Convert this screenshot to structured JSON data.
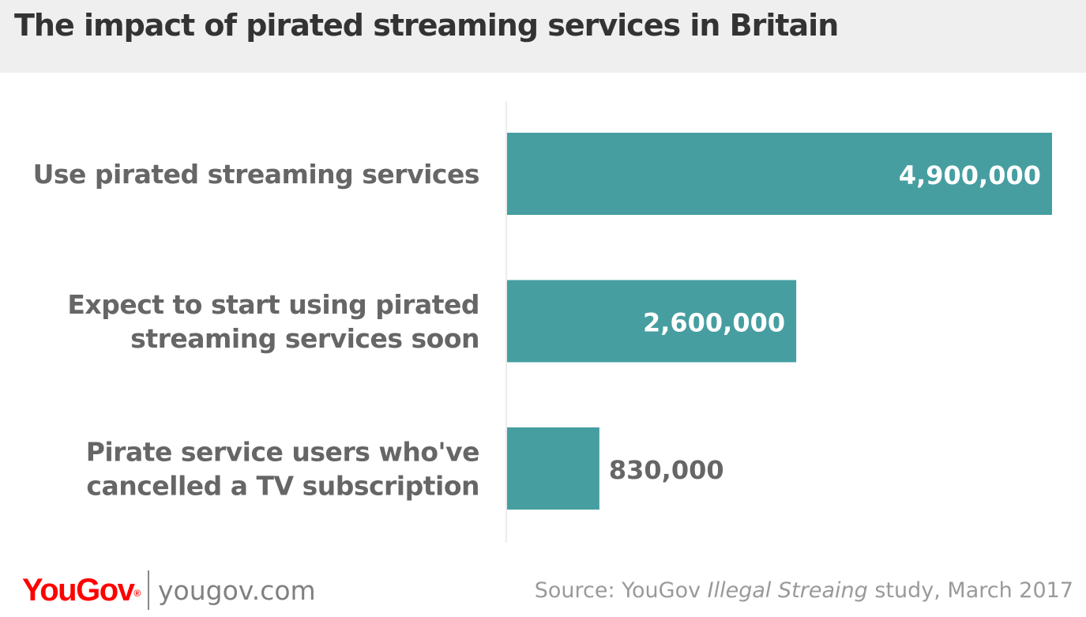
{
  "header": {
    "title": "The impact of pirated streaming services in Britain"
  },
  "colors": {
    "bar": "#469ea0",
    "bar_label_inside": "#ffffff",
    "bar_label_outside": "#666666",
    "category_label": "#666666",
    "axis_line": "#d9d9d9",
    "header_bg": "#efefef",
    "logo": "#ff0000"
  },
  "chart_data": {
    "type": "bar",
    "orientation": "horizontal",
    "title": "The impact of pirated streaming services in Britain",
    "categories": [
      [
        "Use pirated streaming services"
      ],
      [
        "Expect to start using pirated",
        "streaming services soon"
      ],
      [
        "Pirate service users who've",
        "cancelled a TV subscription"
      ]
    ],
    "values": [
      4900000,
      2600000,
      830000
    ],
    "value_labels": [
      "4,900,000",
      "2,600,000",
      "830,000"
    ],
    "xlim": [
      0,
      4900000
    ],
    "grid": false,
    "legend": "none"
  },
  "footer": {
    "logo_text": "YouGov",
    "logo_mark": "®",
    "url": "yougov.com",
    "source_prefix": "Source: YouGov ",
    "source_italic": "Illegal Streaing",
    "source_suffix": " study, March 2017"
  }
}
